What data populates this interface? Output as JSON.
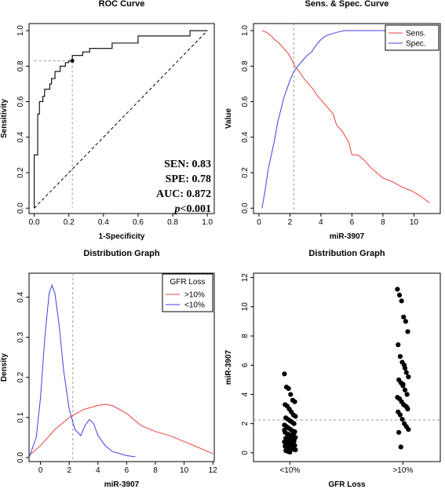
{
  "chart_data": [
    {
      "type": "line",
      "title": "ROC Curve",
      "xlabel": "1-Specificity",
      "ylabel": "Sensitivity",
      "xlim": [
        0,
        1
      ],
      "ylim": [
        0,
        1
      ],
      "xticks": [
        "0.0",
        "0.2",
        "0.4",
        "0.6",
        "0.8",
        "1.0"
      ],
      "yticks": [
        "0.0",
        "0.2",
        "0.4",
        "0.6",
        "0.8",
        "1.0"
      ],
      "series": [
        {
          "x": [
            0,
            0,
            0.02,
            0.02,
            0.03,
            0.03,
            0.05,
            0.05,
            0.06,
            0.06,
            0.09,
            0.09,
            0.1,
            0.1,
            0.12,
            0.12,
            0.15,
            0.15,
            0.18,
            0.18,
            0.2,
            0.2,
            0.22,
            0.22,
            0.28,
            0.28,
            0.32,
            0.32,
            0.45,
            0.45,
            0.6,
            0.6,
            0.9,
            0.9,
            1.0
          ],
          "y": [
            0,
            0.3,
            0.3,
            0.53,
            0.53,
            0.6,
            0.6,
            0.63,
            0.63,
            0.67,
            0.67,
            0.7,
            0.7,
            0.73,
            0.73,
            0.77,
            0.77,
            0.8,
            0.8,
            0.82,
            0.82,
            0.83,
            0.83,
            0.86,
            0.86,
            0.88,
            0.88,
            0.9,
            0.9,
            0.93,
            0.93,
            0.97,
            0.97,
            1.0,
            1.0
          ],
          "color": "#000000"
        }
      ],
      "diagonal": true,
      "cutoff_point": [
        0.22,
        0.83
      ],
      "stats": [
        "SEN: 0.83",
        "SPE: 0.78",
        "AUC: 0.872",
        "<0.001"
      ],
      "p_label": "p"
    },
    {
      "type": "line",
      "title": "Sens. & Spec. Curve",
      "xlabel": "miR-3907",
      "ylabel": "Value",
      "xlim": [
        0,
        11.3
      ],
      "ylim": [
        0,
        1
      ],
      "xticks": [
        "0",
        "2",
        "4",
        "6",
        "8",
        "10"
      ],
      "yticks": [
        "0.0",
        "0.2",
        "0.4",
        "0.6",
        "0.8",
        "1.0"
      ],
      "cutoff_x": 2.25,
      "legend": "top-right",
      "series": [
        {
          "name": "Sens.",
          "color": "#e8433c",
          "x": [
            0.2,
            0.5,
            0.8,
            1.0,
            1.3,
            1.6,
            1.9,
            2.1,
            2.3,
            2.6,
            2.9,
            3.2,
            3.5,
            3.8,
            4.1,
            4.4,
            4.8,
            5.0,
            5.4,
            5.8,
            6.0,
            6.4,
            6.8,
            7.2,
            7.6,
            8.0,
            8.6,
            9.2,
            9.8,
            10.4,
            11.0
          ],
          "y": [
            1.0,
            0.99,
            0.97,
            0.95,
            0.93,
            0.9,
            0.87,
            0.84,
            0.8,
            0.77,
            0.73,
            0.7,
            0.67,
            0.63,
            0.6,
            0.57,
            0.53,
            0.47,
            0.43,
            0.37,
            0.3,
            0.3,
            0.27,
            0.23,
            0.2,
            0.17,
            0.15,
            0.12,
            0.1,
            0.07,
            0.03
          ]
        },
        {
          "name": "Spec.",
          "color": "#3f3fe0",
          "x": [
            0.2,
            0.4,
            0.6,
            0.8,
            1.0,
            1.2,
            1.4,
            1.6,
            1.8,
            2.0,
            2.2,
            2.5,
            2.8,
            3.1,
            3.4,
            3.7,
            4.0,
            4.3,
            4.6,
            5.0,
            5.5,
            6.0,
            7.0,
            8.0,
            9.0,
            10.0,
            11.0
          ],
          "y": [
            0.0,
            0.1,
            0.22,
            0.3,
            0.38,
            0.48,
            0.55,
            0.62,
            0.67,
            0.72,
            0.76,
            0.8,
            0.83,
            0.86,
            0.88,
            0.92,
            0.95,
            0.97,
            0.98,
            0.99,
            1.0,
            1.0,
            1.0,
            1.0,
            1.0,
            1.0,
            1.0
          ]
        }
      ]
    },
    {
      "type": "line",
      "title": "Distribution Graph",
      "xlabel": "miR-3907",
      "ylabel": "Density",
      "xlim": [
        -0.8,
        12.1
      ],
      "ylim": [
        -0.01,
        0.46
      ],
      "xticks": [
        "0",
        "2",
        "4",
        "6",
        "8",
        "10",
        "12"
      ],
      "yticks": [
        "0.0",
        "0.1",
        "0.2",
        "0.3",
        "0.4"
      ],
      "cutoff_x": 2.25,
      "legend": "top-right",
      "legend_title": "GFR Loss",
      "series": [
        {
          "name": ">10%",
          "color": "#e8433c",
          "x": [
            -0.8,
            0,
            1,
            2,
            3,
            4,
            4.5,
            5,
            6,
            7,
            8,
            9,
            10,
            11,
            12
          ],
          "y": [
            0.005,
            0.03,
            0.07,
            0.1,
            0.12,
            0.13,
            0.133,
            0.13,
            0.11,
            0.08,
            0.065,
            0.055,
            0.04,
            0.025,
            0.01
          ]
        },
        {
          "name": "<10%",
          "color": "#3f3fe0",
          "x": [
            -0.8,
            -0.3,
            0,
            0.3,
            0.6,
            0.8,
            1.0,
            1.3,
            1.6,
            2.0,
            2.4,
            2.8,
            3.1,
            3.4,
            3.7,
            4.0,
            4.5,
            5.0,
            5.5,
            6.0,
            6.6
          ],
          "y": [
            0.0,
            0.05,
            0.15,
            0.3,
            0.41,
            0.43,
            0.41,
            0.33,
            0.22,
            0.12,
            0.07,
            0.055,
            0.08,
            0.095,
            0.085,
            0.055,
            0.03,
            0.015,
            0.01,
            0.005,
            0.002
          ]
        }
      ]
    },
    {
      "type": "scatter",
      "title": "Distribution Graph",
      "xlabel": "GFR Loss",
      "ylabel": "miR-3907",
      "categories": [
        "<10%",
        ">10%"
      ],
      "ylim": [
        -0.6,
        12.3
      ],
      "yticks": [
        "0",
        "2",
        "4",
        "6",
        "8",
        "10",
        "12"
      ],
      "cutoff_y": 2.25,
      "series": [
        {
          "name": "<10%",
          "values": [
            5.4,
            4.5,
            4.4,
            4.0,
            3.6,
            3.5,
            3.3,
            3.2,
            3.0,
            2.8,
            2.6,
            2.5,
            2.4,
            2.3,
            2.2,
            2.1,
            2.0,
            1.9,
            1.8,
            1.7,
            1.6,
            1.5,
            1.45,
            1.4,
            1.3,
            1.25,
            1.2,
            1.1,
            1.05,
            1.0,
            0.95,
            0.9,
            0.85,
            0.8,
            0.75,
            0.7,
            0.65,
            0.6,
            0.55,
            0.5,
            0.45,
            0.4,
            0.35,
            0.3,
            0.25,
            0.2,
            0.15,
            0.1,
            0.05,
            1.15,
            1.35,
            1.55,
            0.88,
            0.62
          ]
        },
        {
          "name": ">10%",
          "values": [
            11.2,
            10.8,
            10.4,
            9.3,
            9.0,
            8.3,
            7.4,
            6.6,
            6.2,
            6.0,
            5.5,
            5.2,
            5.0,
            4.8,
            4.6,
            4.3,
            4.0,
            3.8,
            3.7,
            3.5,
            3.3,
            3.2,
            3.0,
            2.8,
            2.6,
            2.3,
            2.0,
            1.8,
            1.6,
            1.4,
            0.4,
            4.7,
            5.8,
            3.1
          ]
        }
      ]
    }
  ]
}
